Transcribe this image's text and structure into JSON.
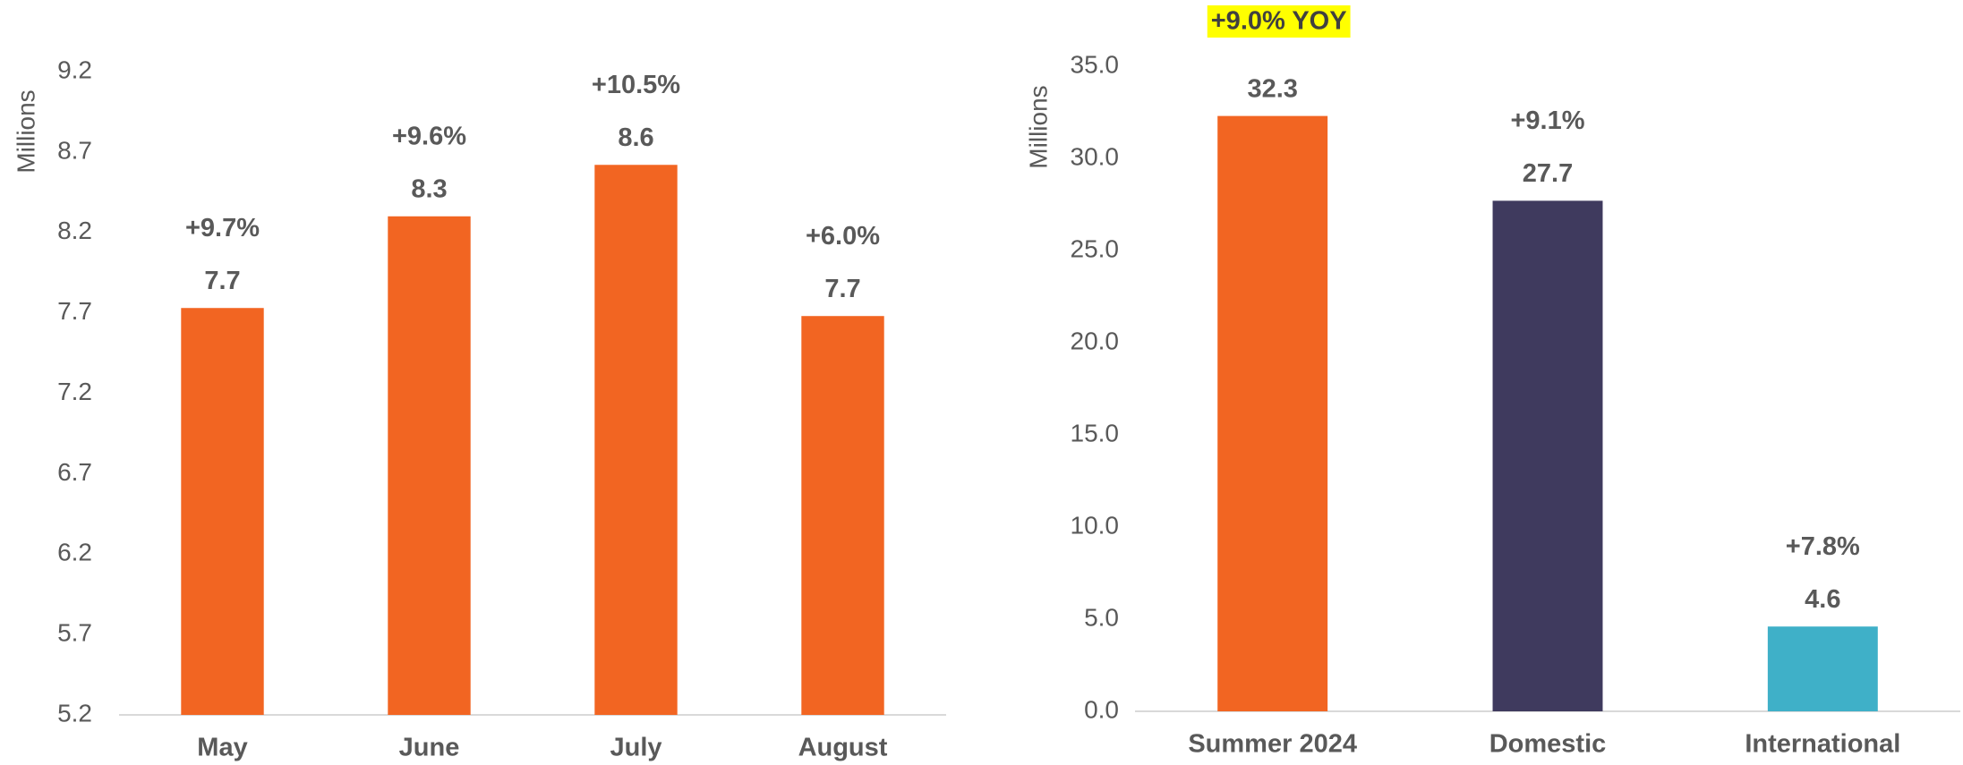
{
  "chart_data": [
    {
      "type": "bar",
      "ylabel": "Millions",
      "categories": [
        "May",
        "June",
        "July",
        "August"
      ],
      "values": [
        7.73,
        8.3,
        8.62,
        7.68
      ],
      "value_labels": [
        "7.7",
        "8.3",
        "8.6",
        "7.7"
      ],
      "change_labels": [
        "+9.7%",
        "+9.6%",
        "+10.5%",
        "+6.0%"
      ],
      "color": "#f26522",
      "ylim": [
        5.2,
        9.2
      ],
      "yticks": [
        5.2,
        5.7,
        6.2,
        6.7,
        7.2,
        7.7,
        8.2,
        8.7,
        9.2
      ],
      "grid": false
    },
    {
      "type": "bar",
      "ylabel": "Millions",
      "annotation": "+9.0% YOY",
      "categories": [
        "Summer 2024",
        "Domestic",
        "International"
      ],
      "values": [
        32.3,
        27.7,
        4.6
      ],
      "change_labels": [
        null,
        "+9.1%",
        "+7.8%"
      ],
      "colors": [
        "#f26522",
        "#3f3a5e",
        "#3fb0c8"
      ],
      "ylim": [
        0,
        35
      ],
      "yticks": [
        {
          "value": 0,
          "label": "0.0"
        },
        {
          "value": 5,
          "label": "5.0"
        },
        {
          "value": 10,
          "label": "10.0"
        },
        {
          "value": 15,
          "label": "15.0"
        },
        {
          "value": 20,
          "label": "20.0"
        },
        {
          "value": 25,
          "label": "25.0"
        },
        {
          "value": 30,
          "label": "30.0"
        },
        {
          "value": 35,
          "label": "35.0"
        }
      ],
      "grid": false
    }
  ]
}
